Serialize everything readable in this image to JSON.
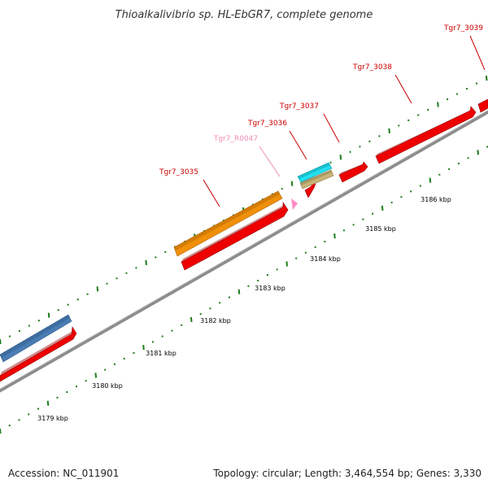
{
  "title": "Thioalkalivibrio sp. HL-EbGR7, complete genome",
  "footer": {
    "accession": "Accession: NC_011901",
    "stats": "Topology: circular; Length: 3,464,554 bp; Genes: 3,330"
  },
  "colors": {
    "cds": "#ee0000",
    "cds_dark": "#990000",
    "backbone": "#8c8c8c",
    "tick": "#1c7d1c",
    "label_cds": "#cc0000",
    "label_rna": "#f08cb4",
    "rna_pink": "#ff8cc8"
  },
  "axis": {
    "unit": "kbp",
    "ticks": [
      {
        "label": "3179 kbp"
      },
      {
        "label": "3180 kbp"
      },
      {
        "label": "3181 kbp"
      },
      {
        "label": "3182 kbp"
      },
      {
        "label": "3183 kbp"
      },
      {
        "label": "3184 kbp"
      },
      {
        "label": "3185 kbp"
      },
      {
        "label": "3186 kbp"
      }
    ]
  },
  "features": [
    {
      "id": "blue-feature",
      "color": "#4a7db4",
      "dark": "#2f5c8a"
    },
    {
      "id": "cds-left",
      "color": "#ee0000",
      "dark": "#990000"
    },
    {
      "id": "orange-feature",
      "color": "#f0900a",
      "dark": "#b06400"
    },
    {
      "id": "tgr7-3035",
      "color": "#ee0000",
      "dark": "#990000"
    },
    {
      "id": "tgr7-3036",
      "color": "#ee0000",
      "dark": "#990000"
    },
    {
      "id": "cyan-feature",
      "color": "#22e0f0",
      "dark": "#109aa8"
    },
    {
      "id": "tan-feature",
      "color": "#c8b478",
      "dark": "#8a7a4a"
    },
    {
      "id": "tgr7-3037",
      "color": "#ee0000",
      "dark": "#990000"
    },
    {
      "id": "tgr7-3038",
      "color": "#ee0000",
      "dark": "#990000"
    },
    {
      "id": "tgr7-3039",
      "color": "#ee0000",
      "dark": "#990000"
    }
  ],
  "gene_labels": [
    {
      "text": "Tgr7_3035",
      "kind": "cds"
    },
    {
      "text": "Tgr7_R0047",
      "kind": "rna"
    },
    {
      "text": "Tgr7_3036",
      "kind": "cds"
    },
    {
      "text": "Tgr7_3037",
      "kind": "cds"
    },
    {
      "text": "Tgr7_3038",
      "kind": "cds"
    },
    {
      "text": "Tgr7_3039",
      "kind": "cds"
    }
  ]
}
